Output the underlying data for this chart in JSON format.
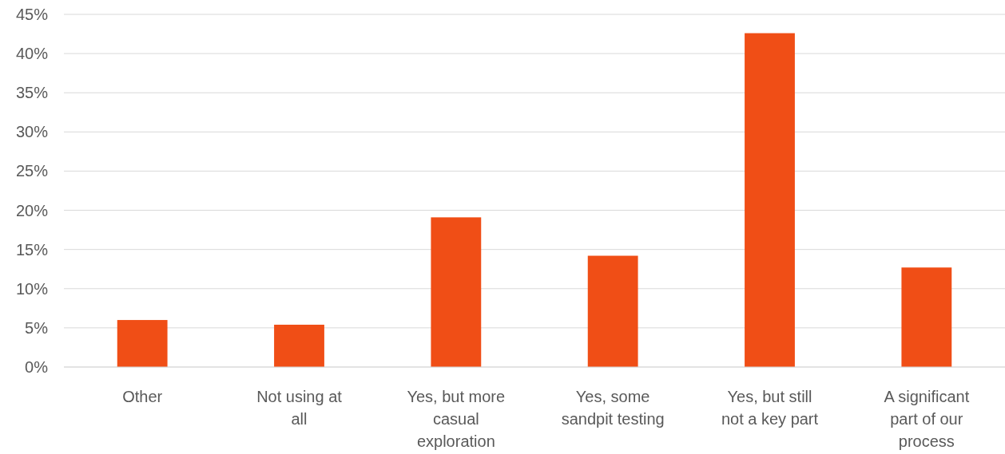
{
  "chart_data": {
    "type": "bar",
    "categories": [
      "Other",
      "Not using at all",
      "Yes, but more casual exploration",
      "Yes, some sandpit testing",
      "Yes, but still not a key part",
      "A significant part of our process"
    ],
    "values": [
      6,
      5.4,
      19.1,
      14.2,
      42.6,
      12.7
    ],
    "color": "#f04e16",
    "ylim": [
      0,
      45
    ],
    "yticks": [
      {
        "value": 0,
        "label": "0%"
      },
      {
        "value": 5,
        "label": "5%"
      },
      {
        "value": 10,
        "label": "10%"
      },
      {
        "value": 15,
        "label": "15%"
      },
      {
        "value": 20,
        "label": "20%"
      },
      {
        "value": 25,
        "label": "25%"
      },
      {
        "value": 30,
        "label": "30%"
      },
      {
        "value": 35,
        "label": "35%"
      },
      {
        "value": 40,
        "label": "40%"
      },
      {
        "value": 45,
        "label": "45%"
      }
    ],
    "grid": "y"
  }
}
